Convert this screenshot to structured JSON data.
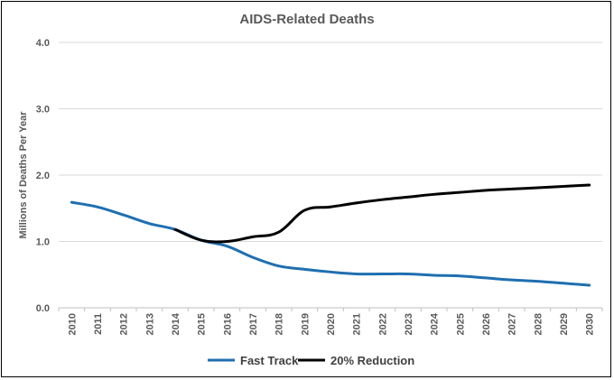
{
  "chart_data": {
    "type": "line",
    "title": "AIDS-Related Deaths",
    "xlabel": "",
    "ylabel": "Millions of Deaths Per Year",
    "ylim": [
      0,
      4
    ],
    "yticks": [
      "0.0",
      "1.0",
      "2.0",
      "3.0",
      "4.0"
    ],
    "x": [
      "2010",
      "2011",
      "2012",
      "2013",
      "2014",
      "2015",
      "2016",
      "2017",
      "2018",
      "2019",
      "2020",
      "2021",
      "2022",
      "2023",
      "2024",
      "2025",
      "2026",
      "2027",
      "2028",
      "2029",
      "2030"
    ],
    "grid": true,
    "legend_position": "bottom",
    "series": [
      {
        "name": "Fast Track",
        "color": "#1F6FB0",
        "x": [
          "2010",
          "2011",
          "2012",
          "2013",
          "2014",
          "2015",
          "2016",
          "2017",
          "2018",
          "2019",
          "2020",
          "2021",
          "2022",
          "2023",
          "2024",
          "2025",
          "2026",
          "2027",
          "2028",
          "2029",
          "2030"
        ],
        "values": [
          1.59,
          1.52,
          1.4,
          1.27,
          1.18,
          1.02,
          0.93,
          0.76,
          0.63,
          0.58,
          0.54,
          0.51,
          0.51,
          0.51,
          0.49,
          0.48,
          0.45,
          0.42,
          0.4,
          0.37,
          0.34
        ]
      },
      {
        "name": "20% Reduction",
        "color": "#000000",
        "x": [
          "2014",
          "2015",
          "2016",
          "2017",
          "2018",
          "2019",
          "2020",
          "2021",
          "2022",
          "2023",
          "2024",
          "2025",
          "2026",
          "2027",
          "2028",
          "2029",
          "2030"
        ],
        "values": [
          1.18,
          1.02,
          1.0,
          1.07,
          1.14,
          1.47,
          1.52,
          1.58,
          1.63,
          1.67,
          1.71,
          1.74,
          1.77,
          1.79,
          1.81,
          1.83,
          1.85
        ]
      }
    ]
  }
}
